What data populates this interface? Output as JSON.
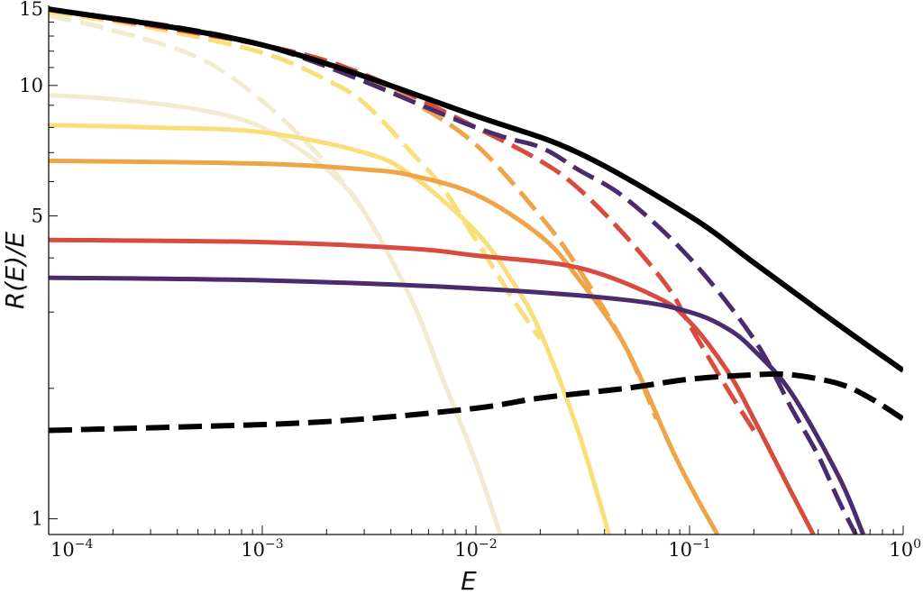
{
  "chart_data": {
    "type": "line",
    "xlabel": "E",
    "ylabel": "R(E)/E",
    "x_scale": "log",
    "y_scale": "log",
    "xlim": [
      0.0001,
      1
    ],
    "ylim": [
      0.92,
      15.3
    ],
    "x_ticks": [
      {
        "value": 0.0001,
        "base": "10",
        "exp": "−4"
      },
      {
        "value": 0.001,
        "base": "10",
        "exp": "−3"
      },
      {
        "value": 0.01,
        "base": "10",
        "exp": "−2"
      },
      {
        "value": 0.1,
        "base": "10",
        "exp": "−1"
      },
      {
        "value": 1,
        "base": "10",
        "exp": "0"
      }
    ],
    "y_ticks": [
      {
        "value": 1,
        "label": "1"
      },
      {
        "value": 5,
        "label": "5"
      },
      {
        "value": 10,
        "label": "10"
      },
      {
        "value": 15,
        "label": "15"
      }
    ],
    "grid": false,
    "legend": "none",
    "series": [
      {
        "color": "#f3ead2",
        "style": "solid",
        "x": [
          0.0001,
          0.0002,
          0.0005,
          0.001,
          0.002,
          0.003,
          0.005,
          0.007,
          0.01,
          0.013
        ],
        "y": [
          9.5,
          9.3,
          8.8,
          8.0,
          6.4,
          5.1,
          3.2,
          2.1,
          1.35,
          0.92
        ]
      },
      {
        "color": "#f3ead2",
        "style": "dashed",
        "x": [
          0.0001,
          0.0002,
          0.0005,
          0.001,
          0.002,
          0.003,
          0.005,
          0.007,
          0.01,
          0.013
        ],
        "y": [
          14.5,
          13.4,
          11.6,
          9.2,
          6.6,
          5.1,
          3.2,
          2.1,
          1.35,
          0.92
        ]
      },
      {
        "color": "#f9df7a",
        "style": "solid",
        "x": [
          0.0001,
          0.0003,
          0.001,
          0.003,
          0.005,
          0.01,
          0.015,
          0.02,
          0.03,
          0.042
        ],
        "y": [
          8.1,
          8.0,
          7.8,
          7.0,
          6.2,
          4.6,
          3.5,
          2.7,
          1.6,
          0.92
        ]
      },
      {
        "color": "#f9df7a",
        "style": "dashed",
        "x": [
          0.0001,
          0.0003,
          0.001,
          0.002,
          0.003,
          0.005,
          0.007,
          0.01,
          0.015,
          0.02
        ],
        "y": [
          14.8,
          13.6,
          11.9,
          10.3,
          9.1,
          7.0,
          5.8,
          4.4,
          3.2,
          2.6
        ]
      },
      {
        "color": "#eea54a",
        "style": "solid",
        "x": [
          0.0001,
          0.001,
          0.003,
          0.005,
          0.01,
          0.02,
          0.03,
          0.05,
          0.08,
          0.1,
          0.135
        ],
        "y": [
          6.7,
          6.6,
          6.4,
          6.2,
          5.6,
          4.5,
          3.6,
          2.5,
          1.5,
          1.2,
          0.92
        ]
      },
      {
        "color": "#eea54a",
        "style": "dashed",
        "x": [
          0.0001,
          0.001,
          0.003,
          0.005,
          0.01,
          0.02,
          0.03,
          0.05,
          0.07
        ],
        "y": [
          15.0,
          12.4,
          10.4,
          9.2,
          7.3,
          5.0,
          3.8,
          2.5,
          1.7
        ]
      },
      {
        "color": "#d84c3e",
        "style": "solid",
        "x": [
          0.0001,
          0.001,
          0.005,
          0.01,
          0.03,
          0.07,
          0.1,
          0.15,
          0.2,
          0.3,
          0.38
        ],
        "y": [
          4.4,
          4.35,
          4.2,
          4.05,
          3.8,
          3.25,
          2.85,
          2.2,
          1.7,
          1.15,
          0.92
        ]
      },
      {
        "color": "#d84c3e",
        "style": "dashed",
        "x": [
          0.0001,
          0.001,
          0.003,
          0.01,
          0.02,
          0.03,
          0.05,
          0.08,
          0.1,
          0.15,
          0.2
        ],
        "y": [
          15.0,
          12.4,
          10.6,
          8.0,
          6.7,
          5.8,
          4.5,
          3.4,
          2.8,
          2.0,
          1.6
        ]
      },
      {
        "color": "#4a2c6e",
        "style": "solid",
        "x": [
          0.0001,
          0.001,
          0.01,
          0.05,
          0.1,
          0.15,
          0.2,
          0.3,
          0.5,
          0.65
        ],
        "y": [
          3.6,
          3.55,
          3.4,
          3.2,
          3.0,
          2.75,
          2.45,
          1.95,
          1.25,
          0.92
        ]
      },
      {
        "color": "#4a2c6e",
        "style": "dashed",
        "x": [
          0.0001,
          0.001,
          0.01,
          0.02,
          0.03,
          0.05,
          0.1,
          0.2,
          0.3,
          0.4,
          0.5,
          0.6
        ],
        "y": [
          15.0,
          12.4,
          8.0,
          7.2,
          6.4,
          5.5,
          4.0,
          2.6,
          1.8,
          1.4,
          1.1,
          0.92
        ]
      },
      {
        "color": "#000000",
        "style": "solid",
        "x": [
          0.0001,
          0.001,
          0.01,
          0.03,
          0.1,
          0.2,
          0.5,
          1
        ],
        "y": [
          15.0,
          12.4,
          8.5,
          7.0,
          5.0,
          3.9,
          2.8,
          2.2
        ]
      },
      {
        "color": "#000000",
        "style": "dashed",
        "x": [
          0.0001,
          0.001,
          0.003,
          0.01,
          0.02,
          0.05,
          0.1,
          0.2,
          0.3,
          0.5,
          0.7,
          1
        ],
        "y": [
          1.6,
          1.65,
          1.7,
          1.8,
          1.9,
          2.0,
          2.1,
          2.15,
          2.15,
          2.05,
          1.9,
          1.7
        ]
      }
    ]
  }
}
